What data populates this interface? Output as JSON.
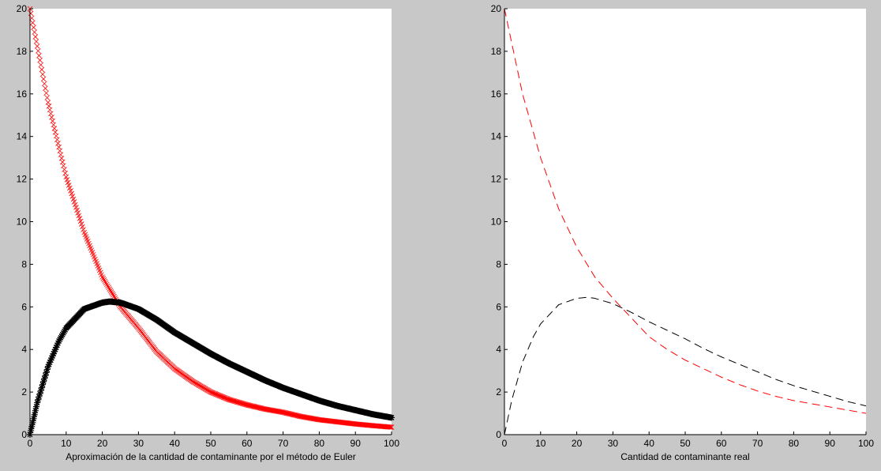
{
  "chart_data": [
    {
      "type": "scatter",
      "xlabel": "Aproximación de la cantidad de contaminante por el método de Euler",
      "ylabel": "",
      "xlim": [
        0,
        100
      ],
      "ylim": [
        0,
        20
      ],
      "xticks": [
        0,
        10,
        20,
        30,
        40,
        50,
        60,
        70,
        80,
        90,
        100
      ],
      "yticks": [
        0,
        2,
        4,
        6,
        8,
        10,
        12,
        14,
        16,
        18,
        20
      ],
      "grid": false,
      "series": [
        {
          "color": "#ff0000",
          "marker": "x",
          "x": [
            0,
            5,
            10,
            15,
            20,
            25,
            30,
            35,
            40,
            45,
            50,
            55,
            60,
            65,
            70,
            75,
            80,
            85,
            90,
            95,
            100
          ],
          "y": [
            20,
            15.6,
            12.1,
            9.5,
            7.4,
            6.0,
            5.0,
            3.9,
            3.1,
            2.5,
            2.0,
            1.65,
            1.4,
            1.2,
            1.05,
            0.85,
            0.7,
            0.6,
            0.5,
            0.42,
            0.35
          ]
        },
        {
          "color": "#000000",
          "marker": "*",
          "x": [
            0,
            2,
            5,
            8,
            10,
            15,
            20,
            22,
            25,
            30,
            35,
            40,
            45,
            50,
            55,
            60,
            65,
            70,
            75,
            80,
            85,
            90,
            95,
            100
          ],
          "y": [
            0,
            1.5,
            3.2,
            4.4,
            5.0,
            5.9,
            6.2,
            6.25,
            6.2,
            5.9,
            5.4,
            4.8,
            4.3,
            3.8,
            3.35,
            2.95,
            2.55,
            2.2,
            1.9,
            1.6,
            1.35,
            1.15,
            0.95,
            0.8
          ]
        }
      ]
    },
    {
      "type": "line",
      "xlabel": "Cantidad de contaminante real",
      "ylabel": "",
      "xlim": [
        0,
        100
      ],
      "ylim": [
        0,
        20
      ],
      "xticks": [
        0,
        10,
        20,
        30,
        40,
        50,
        60,
        70,
        80,
        90,
        100
      ],
      "yticks": [
        0,
        2,
        4,
        6,
        8,
        10,
        12,
        14,
        16,
        18,
        20
      ],
      "grid": false,
      "series": [
        {
          "color": "#ff0000",
          "linestyle": "dashed",
          "x": [
            0,
            5,
            10,
            15,
            20,
            25,
            30,
            35,
            40,
            45,
            50,
            55,
            60,
            65,
            70,
            75,
            80,
            85,
            90,
            95,
            100
          ],
          "y": [
            20,
            16.0,
            13.0,
            10.6,
            8.8,
            7.4,
            6.4,
            5.5,
            4.6,
            4.0,
            3.5,
            3.1,
            2.7,
            2.35,
            2.05,
            1.8,
            1.6,
            1.45,
            1.3,
            1.15,
            1.0
          ]
        },
        {
          "color": "#000000",
          "linestyle": "dashed",
          "x": [
            0,
            2,
            5,
            8,
            10,
            15,
            20,
            23,
            25,
            30,
            35,
            40,
            45,
            50,
            55,
            60,
            65,
            70,
            75,
            80,
            85,
            90,
            95,
            100
          ],
          "y": [
            0,
            1.6,
            3.4,
            4.6,
            5.2,
            6.1,
            6.4,
            6.45,
            6.4,
            6.15,
            5.75,
            5.3,
            4.9,
            4.5,
            4.05,
            3.65,
            3.3,
            2.95,
            2.6,
            2.3,
            2.05,
            1.8,
            1.55,
            1.35
          ]
        }
      ]
    }
  ]
}
